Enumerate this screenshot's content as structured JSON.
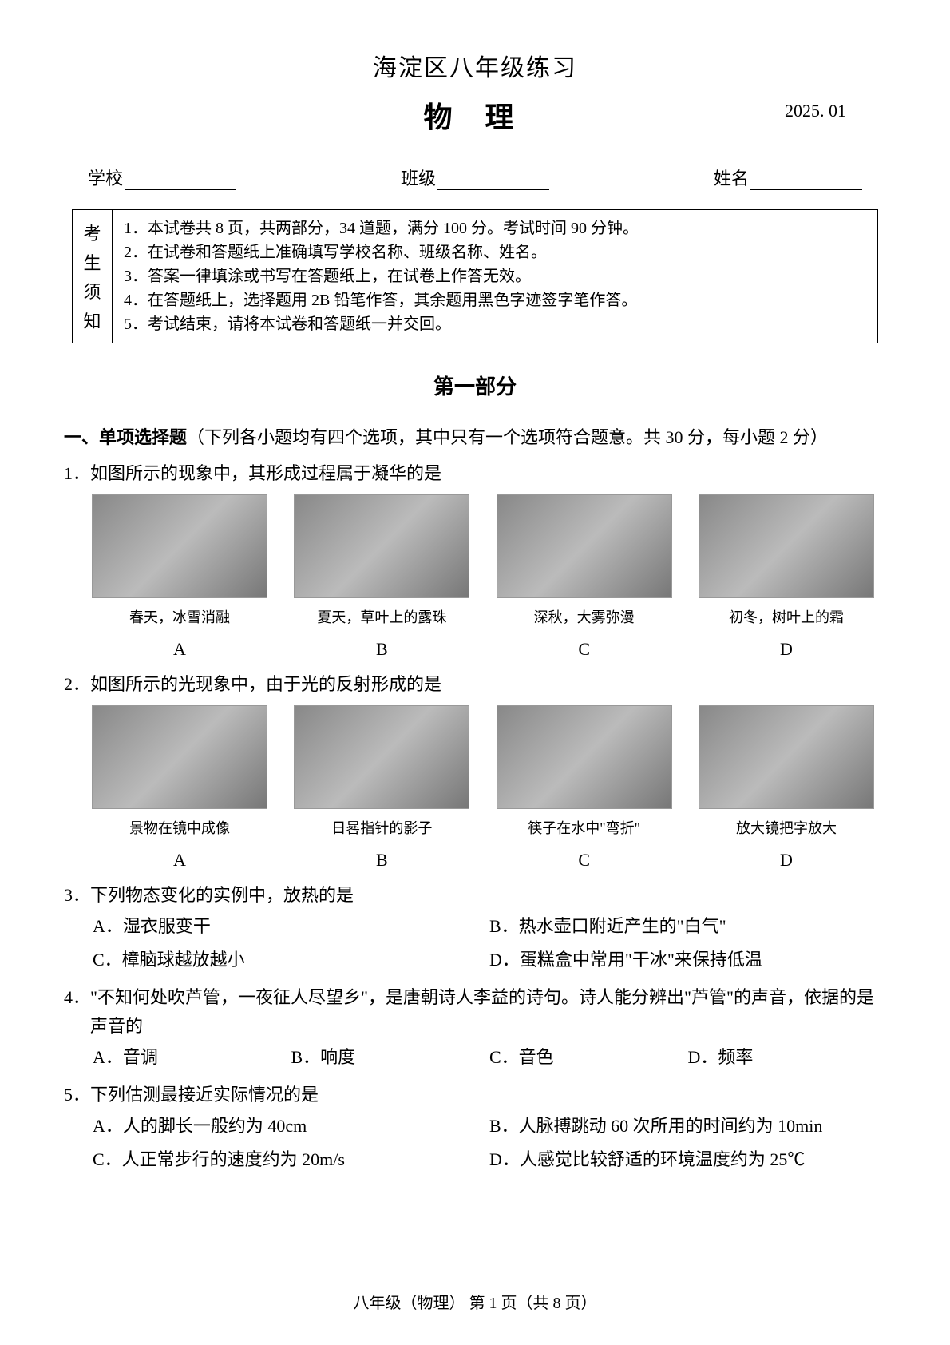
{
  "header": {
    "title": "海淀区八年级练习",
    "subject": "物 理",
    "date": "2025. 01"
  },
  "fields": {
    "school_label": "学校",
    "class_label": "班级",
    "name_label": "姓名"
  },
  "notice": {
    "left_chars": [
      "考",
      "生",
      "须",
      "知"
    ],
    "items": [
      "1．本试卷共 8 页，共两部分，34 道题，满分 100 分。考试时间 90 分钟。",
      "2．在试卷和答题纸上准确填写学校名称、班级名称、姓名。",
      "3．答案一律填涂或书写在答题纸上，在试卷上作答无效。",
      "4．在答题纸上，选择题用 2B 铅笔作答，其余题用黑色字迹签字笔作答。",
      "5．考试结束，请将本试卷和答题纸一并交回。"
    ]
  },
  "part_title": "第一部分",
  "section1": {
    "prefix": "一、单项选择题",
    "desc": "（下列各小题均有四个选项，其中只有一个选项符合题意。共 30 分，每小题 2 分）"
  },
  "q1": {
    "num": "1．",
    "stem": "如图所示的现象中，其形成过程属于凝华的是",
    "imgs": [
      {
        "caption": "春天，冰雪消融",
        "letter": "A"
      },
      {
        "caption": "夏天，草叶上的露珠",
        "letter": "B"
      },
      {
        "caption": "深秋，大雾弥漫",
        "letter": "C"
      },
      {
        "caption": "初冬，树叶上的霜",
        "letter": "D"
      }
    ]
  },
  "q2": {
    "num": "2．",
    "stem": "如图所示的光现象中，由于光的反射形成的是",
    "imgs": [
      {
        "caption": "景物在镜中成像",
        "letter": "A"
      },
      {
        "caption": "日晷指针的影子",
        "letter": "B"
      },
      {
        "caption": "筷子在水中\"弯折\"",
        "letter": "C"
      },
      {
        "caption": "放大镜把字放大",
        "letter": "D"
      }
    ]
  },
  "q3": {
    "num": "3．",
    "stem": "下列物态变化的实例中，放热的是",
    "opts": [
      "A．湿衣服变干",
      "B．热水壶口附近产生的\"白气\"",
      "C．樟脑球越放越小",
      "D．蛋糕盒中常用\"干冰\"来保持低温"
    ]
  },
  "q4": {
    "num": "4．",
    "stem": "\"不知何处吹芦管，一夜征人尽望乡\"，是唐朝诗人李益的诗句。诗人能分辨出\"芦管\"的声音，依据的是声音的",
    "opts": [
      "A．音调",
      "B．响度",
      "C．音色",
      "D．频率"
    ]
  },
  "q5": {
    "num": "5．",
    "stem": "下列估测最接近实际情况的是",
    "opts": [
      "A．人的脚长一般约为 40cm",
      "B．人脉搏跳动 60 次所用的时间约为 10min",
      "C．人正常步行的速度约为 20m/s",
      "D．人感觉比较舒适的环境温度约为 25℃"
    ]
  },
  "footer": "八年级（物理）  第 1 页（共 8 页）"
}
